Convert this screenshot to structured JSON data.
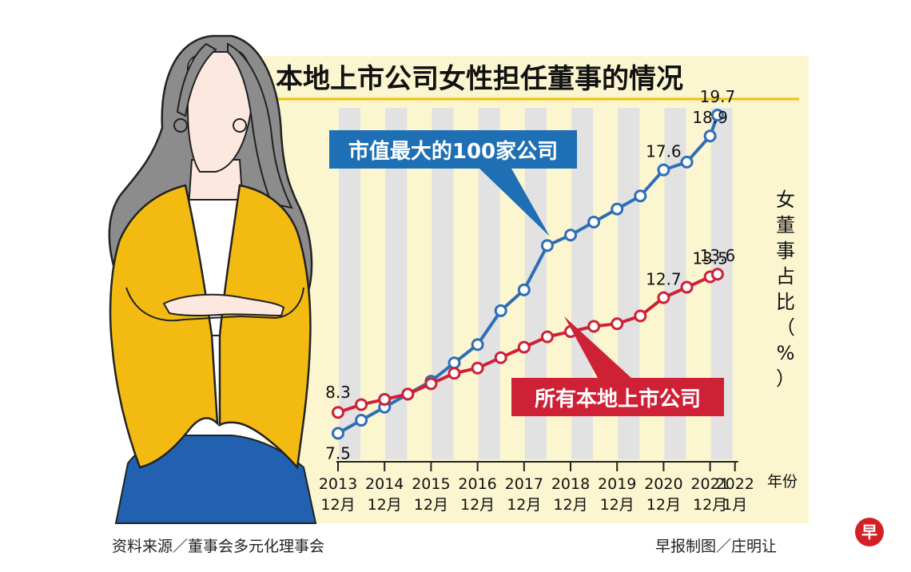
{
  "chart_data": {
    "type": "line",
    "title": "本地上市公司女性担任董事的情况",
    "ylabel": "女董事占比（%）",
    "xlabel": "年份",
    "x_ticks": [
      {
        "year": "2013",
        "month": "12月"
      },
      {
        "year": "2014",
        "month": "12月"
      },
      {
        "year": "2015",
        "month": "12月"
      },
      {
        "year": "2016",
        "month": "12月"
      },
      {
        "year": "2017",
        "month": "12月"
      },
      {
        "year": "2018",
        "month": "12月"
      },
      {
        "year": "2019",
        "month": "12月"
      },
      {
        "year": "2020",
        "month": "12月"
      },
      {
        "year": "2021",
        "month": "12月"
      },
      {
        "year": "2022",
        "month": "1月"
      }
    ],
    "ylim": [
      6.5,
      20.5
    ],
    "grid": "alternating vertical bands",
    "series": [
      {
        "name": "市值最大的100家公司",
        "color": "#2f6eb5",
        "label_bg": "#1f6fb4",
        "x": [
          2013.92,
          2014.42,
          2014.92,
          2015.42,
          2015.92,
          2016.42,
          2016.92,
          2017.42,
          2017.92,
          2018.42,
          2018.92,
          2019.42,
          2019.92,
          2020.42,
          2020.92,
          2021.42,
          2021.92,
          2022.08
        ],
        "y": [
          7.5,
          8.0,
          8.5,
          9.0,
          9.5,
          10.2,
          10.9,
          12.2,
          13.0,
          14.7,
          15.1,
          15.6,
          16.1,
          16.6,
          17.6,
          17.9,
          18.9,
          19.7
        ],
        "value_labels": [
          {
            "index": 0,
            "text": "7.5"
          },
          {
            "index": 14,
            "text": "17.6"
          },
          {
            "index": 16,
            "text": "18.9"
          },
          {
            "index": 17,
            "text": "19.7"
          }
        ]
      },
      {
        "name": "所有本地上市公司",
        "color": "#cf2136",
        "label_bg": "#cf2136",
        "x": [
          2013.92,
          2014.42,
          2014.92,
          2015.42,
          2015.92,
          2016.42,
          2016.92,
          2017.42,
          2017.92,
          2018.42,
          2018.92,
          2019.42,
          2019.92,
          2020.42,
          2020.92,
          2021.42,
          2021.92,
          2022.08
        ],
        "y": [
          8.3,
          8.6,
          8.8,
          9.0,
          9.4,
          9.8,
          10.0,
          10.4,
          10.8,
          11.2,
          11.4,
          11.6,
          11.7,
          12.0,
          12.7,
          13.1,
          13.5,
          13.6
        ],
        "value_labels": [
          {
            "index": 0,
            "text": "8.3"
          },
          {
            "index": 14,
            "text": "12.7"
          },
          {
            "index": 16,
            "text": "13.5"
          },
          {
            "index": 17,
            "text": "13.6"
          }
        ]
      }
    ]
  },
  "footer": {
    "source": "资料来源／董事会多元化理事会",
    "credit": "早报制图／庄明让"
  },
  "logo": {
    "char": "早",
    "color": "#d32027"
  },
  "colors": {
    "panel_bg": "#fbf6d0",
    "band": "#e2e2e2",
    "title_underline": "#f1c300",
    "jacket": "#f3bb12",
    "skirt": "#2161b0",
    "hair": "#8c8c8c"
  }
}
